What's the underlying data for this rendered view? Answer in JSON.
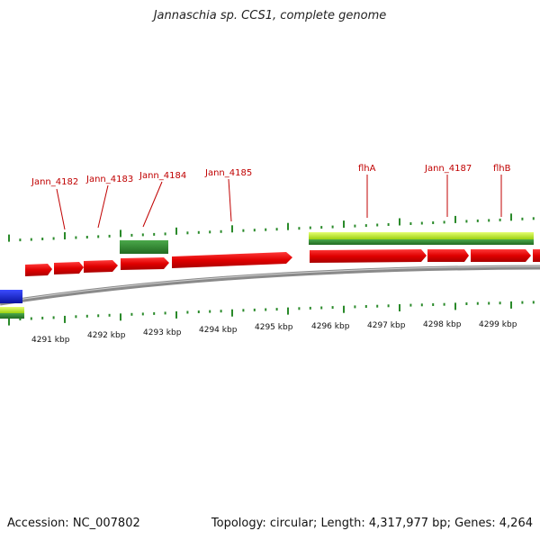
{
  "title": "Jannaschia sp. CCS1, complete genome",
  "footer": {
    "accession": "Accession: NC_007802",
    "summary": "Topology: circular; Length: 4,317,977 bp; Genes: 4,264"
  },
  "colors": {
    "cds": "#e00000",
    "cds_dark": "#a80000",
    "rna_green": "#2e8b2e",
    "rna_lime": "#b8f020",
    "blue_feature": "#1020d0",
    "backbone": "#8a8a8a",
    "tick": "#2a8a2a",
    "label": "#c00000"
  },
  "gene_labels": [
    "Jann_4182",
    "Jann_4183",
    "Jann_4184",
    "Jann_4185",
    "flhA",
    "Jann_4187",
    "flhB"
  ],
  "axis_labels": [
    "4291 kbp",
    "4292 kbp",
    "4293 kbp",
    "4294 kbp",
    "4295 kbp",
    "4296 kbp",
    "4297 kbp",
    "4298 kbp",
    "4299 kbp"
  ]
}
